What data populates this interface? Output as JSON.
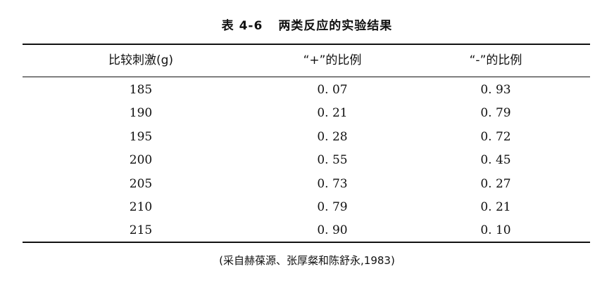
{
  "table": {
    "caption_number": "表 4-6",
    "caption_title": "两类反应的实验结果",
    "headers": [
      "比较刺激(g)",
      "“+”的比例",
      "“-”的比例"
    ],
    "rows": [
      [
        "185",
        "0. 07",
        "0. 93"
      ],
      [
        "190",
        "0. 21",
        "0. 79"
      ],
      [
        "195",
        "0. 28",
        "0. 72"
      ],
      [
        "200",
        "0. 55",
        "0. 45"
      ],
      [
        "205",
        "0. 73",
        "0. 27"
      ],
      [
        "210",
        "0. 79",
        "0. 21"
      ],
      [
        "215",
        "0. 90",
        "0. 10"
      ]
    ],
    "source": "(采自赫葆源、张厚粲和陈舒永,1983)"
  }
}
